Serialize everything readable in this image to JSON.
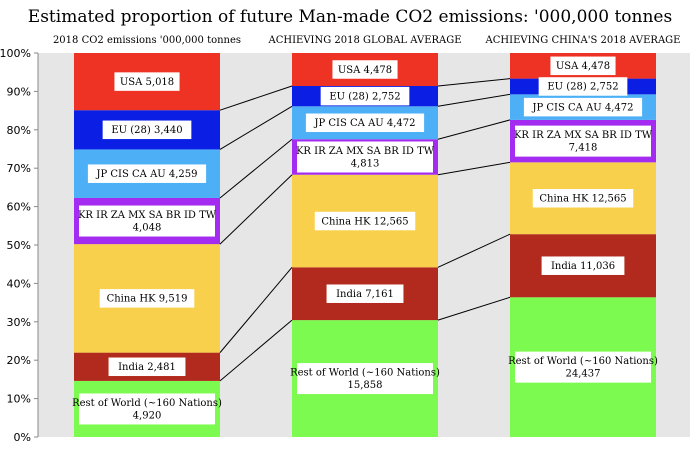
{
  "chart_data": {
    "type": "bar",
    "stacked": true,
    "normalized": true,
    "title": "Estimated proportion of future Man-made CO2 emissions:  '000,000 tonnes",
    "ylim": [
      0,
      100
    ],
    "y_ticks": [
      "0%",
      "10%",
      "20%",
      "30%",
      "40%",
      "50%",
      "60%",
      "70%",
      "80%",
      "90%",
      "100%"
    ],
    "categories": [
      "2018 CO2 emissions '000,000 tonnes",
      "ACHIEVING 2018 GLOBAL AVERAGE",
      "ACHIEVING CHINA'S 2018 AVERAGE"
    ],
    "series": [
      {
        "name": "Rest of World (~160 Nations)",
        "color": "#7dfa50",
        "values": [
          4920,
          15858,
          24437
        ],
        "labels": [
          "Rest of World (~160 Nations)\n4,920",
          "Rest of World (~160 Nations)\n15,858",
          "Rest of World (~160 Nations)\n24,437"
        ]
      },
      {
        "name": "India",
        "color": "#b22a1e",
        "values": [
          2481,
          7161,
          11036
        ],
        "labels": [
          "India 2,481",
          "India 7,161",
          "India 11,036"
        ]
      },
      {
        "name": "China HK",
        "color": "#f9d04b",
        "values": [
          9519,
          12565,
          12565
        ],
        "labels": [
          "China HK 9,519",
          "China HK 12,565",
          "China HK 12,565"
        ]
      },
      {
        "name": "KR IR ZA MX SA BR ID TW",
        "color": "#a32cf0",
        "values": [
          4048,
          4813,
          7418
        ],
        "labels": [
          "KR IR ZA MX SA BR ID TW\n4,048",
          "KR IR ZA MX SA BR ID TW\n4,813",
          "KR IR ZA MX SA BR ID TW\n7,418"
        ]
      },
      {
        "name": "JP CIS CA AU",
        "color": "#4db0f7",
        "values": [
          4259,
          4472,
          4472
        ],
        "labels": [
          "JP CIS CA AU 4,259",
          "JP CIS CA AU 4,472",
          "JP CIS CA AU 4,472"
        ]
      },
      {
        "name": "EU (28)",
        "color": "#0a1fe3",
        "values": [
          3440,
          2752,
          2752
        ],
        "labels": [
          "EU (28) 3,440",
          "EU (28) 2,752",
          "EU (28) 2,752"
        ]
      },
      {
        "name": "USA",
        "color": "#ee3325",
        "values": [
          5018,
          4478,
          4478
        ],
        "labels": [
          "USA 5,018",
          "USA 4,478",
          "USA 4,478"
        ]
      }
    ]
  }
}
